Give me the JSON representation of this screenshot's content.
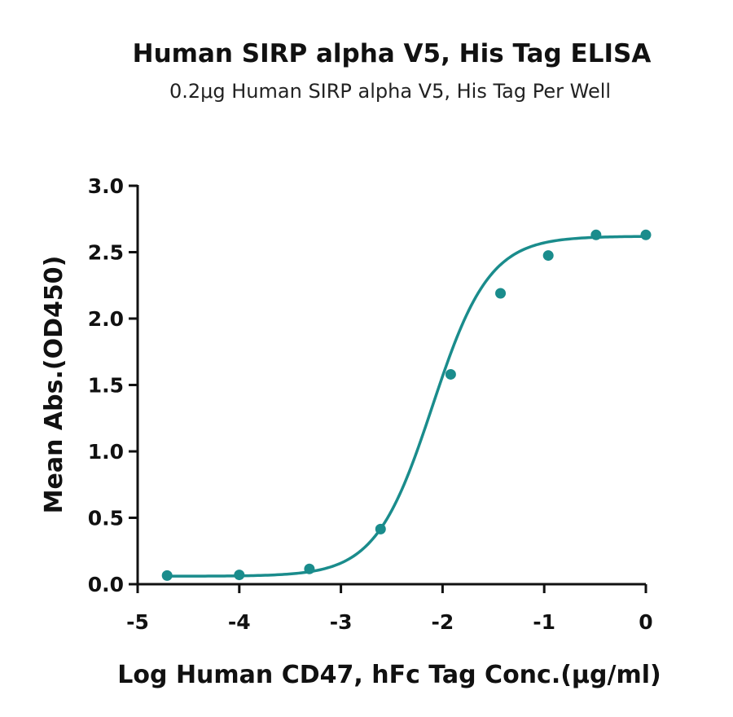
{
  "chart_data": {
    "type": "scatter",
    "title": "Human SIRP alpha V5, His Tag ELISA",
    "subtitle": "0.2μg Human SIRP alpha V5, His Tag Per Well",
    "xlabel": "Log Human CD47, hFc Tag Conc.(μg/ml)",
    "ylabel": "Mean Abs.(OD450)",
    "xlim": [
      -5,
      0
    ],
    "ylim": [
      0,
      3
    ],
    "xticks": [
      -5,
      -4,
      -3,
      -2,
      -1,
      0
    ],
    "yticks": [
      0.0,
      0.5,
      1.0,
      1.5,
      2.0,
      2.5,
      3.0
    ],
    "xtick_labels": [
      "-5",
      "-4",
      "-3",
      "-2",
      "-1",
      "0"
    ],
    "ytick_labels": [
      "0.0",
      "0.5",
      "1.0",
      "1.5",
      "2.0",
      "2.5",
      "3.0"
    ],
    "grid": false,
    "color": "#1a8c8c",
    "series": [
      {
        "x": [
          -4.71,
          -4.0,
          -3.31,
          -2.61,
          -1.92,
          -1.43,
          -0.96,
          -0.49,
          0.0
        ],
        "y": [
          0.065,
          0.07,
          0.115,
          0.415,
          1.58,
          2.19,
          2.475,
          2.63,
          2.63
        ]
      }
    ],
    "fit_curve": {
      "model": "4PL",
      "bottom": 0.06,
      "top": 2.62,
      "log_ec50": -2.1,
      "hill_slope": 1.55
    }
  }
}
